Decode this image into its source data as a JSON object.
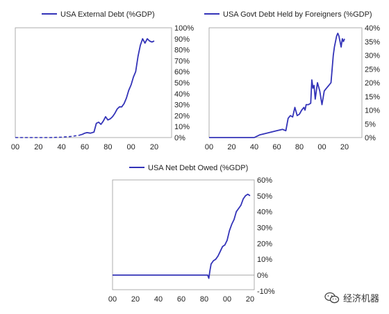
{
  "chart_data": [
    {
      "type": "line",
      "legend": "USA External Debt (%GDP)",
      "color": "#3333b8",
      "x_ticks": [
        "00",
        "20",
        "40",
        "60",
        "80",
        "00",
        "20"
      ],
      "x_tick_years": [
        1900,
        1920,
        1940,
        1960,
        1980,
        2000,
        2020
      ],
      "y_ticks": [
        "0%",
        "10%",
        "20%",
        "30%",
        "40%",
        "50%",
        "60%",
        "70%",
        "80%",
        "90%",
        "100%"
      ],
      "ylim": [
        0,
        100
      ],
      "dashed_segment": {
        "x": [
          1900,
          1910,
          1920,
          1930,
          1940,
          1948,
          1955
        ],
        "y": [
          0,
          0,
          0,
          0,
          0.3,
          1,
          2
        ]
      },
      "x": [
        1955,
        1958,
        1960,
        1962,
        1965,
        1968,
        1970,
        1972,
        1974,
        1976,
        1978,
        1980,
        1982,
        1984,
        1986,
        1988,
        1990,
        1992,
        1994,
        1996,
        1998,
        2000,
        2002,
        2004,
        2006,
        2008,
        2010,
        2012,
        2014,
        2016,
        2018,
        2020
      ],
      "y": [
        2,
        3,
        4,
        4.5,
        4,
        5,
        13,
        14,
        12,
        15,
        19,
        16,
        17,
        19,
        22,
        26,
        28,
        28,
        31,
        36,
        43,
        48,
        55,
        60,
        74,
        84,
        90,
        86,
        90,
        88,
        87,
        88
      ]
    },
    {
      "type": "line",
      "legend": "USA Govt Debt Held by Foreigners (%GDP)",
      "color": "#3333b8",
      "x_ticks": [
        "00",
        "20",
        "40",
        "60",
        "80",
        "00",
        "20"
      ],
      "x_tick_years": [
        1900,
        1920,
        1940,
        1960,
        1980,
        2000,
        2020
      ],
      "y_ticks": [
        "0%",
        "5%",
        "10%",
        "15%",
        "20%",
        "25%",
        "30%",
        "35%",
        "40%"
      ],
      "ylim": [
        0,
        40
      ],
      "x": [
        1900,
        1940,
        1945,
        1950,
        1955,
        1960,
        1965,
        1968,
        1970,
        1972,
        1974,
        1976,
        1978,
        1980,
        1982,
        1984,
        1985,
        1986,
        1988,
        1990,
        1991,
        1992,
        1993,
        1994,
        1995,
        1996,
        1998,
        2000,
        2002,
        2004,
        2006,
        2008,
        2010,
        2011,
        2012,
        2013,
        2014,
        2015,
        2016,
        2017,
        2018,
        2019,
        2020
      ],
      "y": [
        0,
        0,
        1,
        1.5,
        2,
        2.5,
        3,
        2.5,
        7,
        8,
        7.5,
        11,
        8,
        8.5,
        10,
        11,
        10,
        12,
        12,
        12.5,
        21,
        18,
        19,
        14,
        17,
        20,
        17,
        12,
        17,
        18,
        19,
        20,
        30,
        33,
        35,
        37,
        38,
        37,
        35,
        33,
        36,
        35,
        36
      ]
    },
    {
      "type": "line",
      "legend": "USA Net Debt Owed (%GDP)",
      "color": "#3333b8",
      "x_ticks": [
        "00",
        "20",
        "40",
        "60",
        "80",
        "00",
        "20"
      ],
      "x_tick_years": [
        1900,
        1920,
        1940,
        1960,
        1980,
        2000,
        2020
      ],
      "y_ticks": [
        "-10%",
        "0%",
        "10%",
        "20%",
        "30%",
        "40%",
        "50%",
        "60%"
      ],
      "ylim": [
        -10,
        60
      ],
      "x": [
        1900,
        1983,
        1984,
        1985,
        1986,
        1988,
        1990,
        1992,
        1994,
        1996,
        1998,
        2000,
        2002,
        2004,
        2006,
        2008,
        2010,
        2012,
        2014,
        2016,
        2018,
        2020
      ],
      "y": [
        0,
        0,
        -2,
        3,
        7,
        9,
        10,
        12,
        15,
        18,
        19,
        22,
        28,
        32,
        35,
        40,
        42,
        44,
        48,
        50,
        51,
        50
      ]
    }
  ],
  "watermark": {
    "text": "经济机器",
    "icon": "wechat-icon"
  }
}
